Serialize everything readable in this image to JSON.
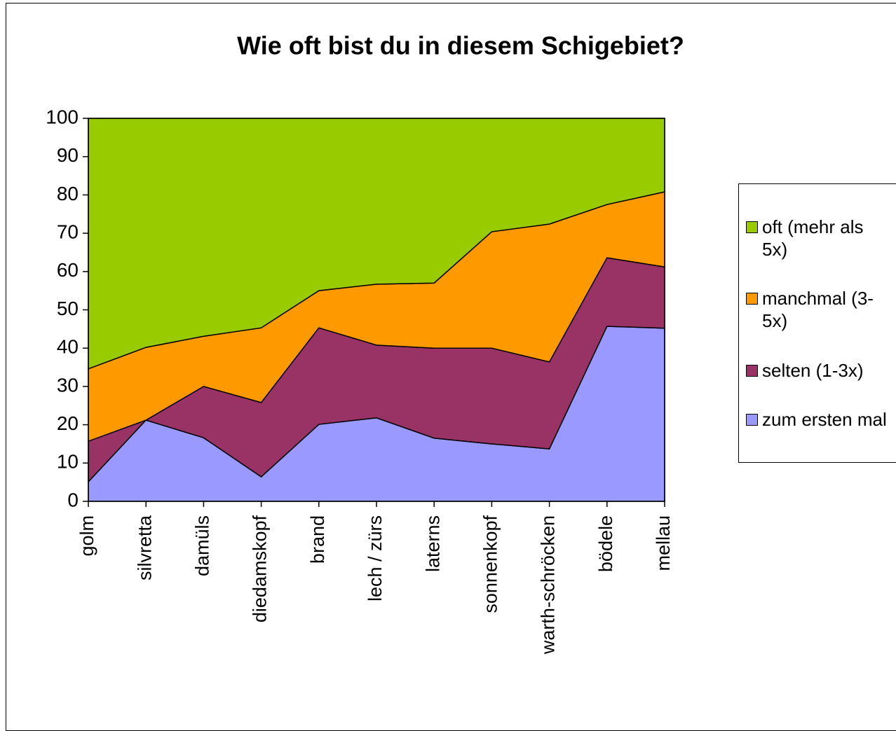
{
  "chart_data": {
    "type": "stacked-area",
    "title": "Wie oft bist du in diesem Schigebiet?",
    "categories": [
      "golm",
      "silvretta",
      "damüls",
      "diedamskopf",
      "brand",
      "lech / zürs",
      "laterns",
      "sonnenkopf",
      "warth-schröcken",
      "bödele",
      "mellau"
    ],
    "series": [
      {
        "name": "zum ersten mal",
        "color": "#9999ff",
        "values": [
          5.1,
          21.2,
          16.6,
          6.4,
          20.1,
          21.8,
          16.5,
          15.0,
          13.7,
          45.7,
          45.2
        ]
      },
      {
        "name": "selten (1-3x)",
        "color": "#993366",
        "values": [
          10.6,
          0,
          13.4,
          19.4,
          25.2,
          19.0,
          23.5,
          25.0,
          22.7,
          17.9,
          16.0
        ]
      },
      {
        "name": "manchmal (3-5x)",
        "color": "#ff9900",
        "values": [
          18.9,
          19.0,
          13.1,
          19.5,
          9.7,
          15.9,
          17.0,
          30.4,
          36.0,
          13.9,
          19.6
        ]
      },
      {
        "name": "oft (mehr als 5x)",
        "color": "#99cc00",
        "values": [
          65.4,
          59.8,
          56.9,
          54.7,
          45.0,
          43.3,
          43.0,
          29.6,
          27.6,
          22.5,
          19.2
        ]
      }
    ],
    "ylim": [
      0,
      100
    ],
    "yticks": [
      0,
      10,
      20,
      30,
      40,
      50,
      60,
      70,
      80,
      90,
      100
    ],
    "legend": "right"
  }
}
